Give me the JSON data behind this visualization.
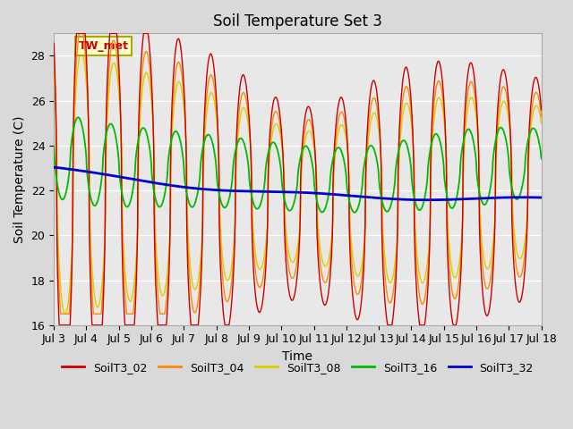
{
  "title": "Soil Temperature Set 3",
  "xlabel": "Time",
  "ylabel": "Soil Temperature (C)",
  "ylim": [
    16,
    29
  ],
  "yticks": [
    16,
    18,
    20,
    22,
    24,
    26,
    28
  ],
  "xtick_labels": [
    "Jul 3",
    "Jul 4",
    "Jul 5",
    "Jul 6",
    "Jul 7",
    "Jul 8",
    "Jul 9",
    "Jul 10",
    "Jul 11",
    "Jul 12",
    "Jul 13",
    "Jul 14",
    "Jul 15",
    "Jul 16",
    "Jul 17",
    "Jul 18"
  ],
  "series_colors": {
    "SoilT3_02": "#cc0000",
    "SoilT3_04": "#ff8800",
    "SoilT3_08": "#ddcc00",
    "SoilT3_16": "#00bb00",
    "SoilT3_32": "#0000cc"
  },
  "annotation_text": "TW_met",
  "fig_facecolor": "#d9d9d9",
  "ax_facecolor": "#e8e8e8",
  "grid_color": "#ffffff",
  "title_fontsize": 12,
  "axis_fontsize": 10,
  "tick_fontsize": 9
}
